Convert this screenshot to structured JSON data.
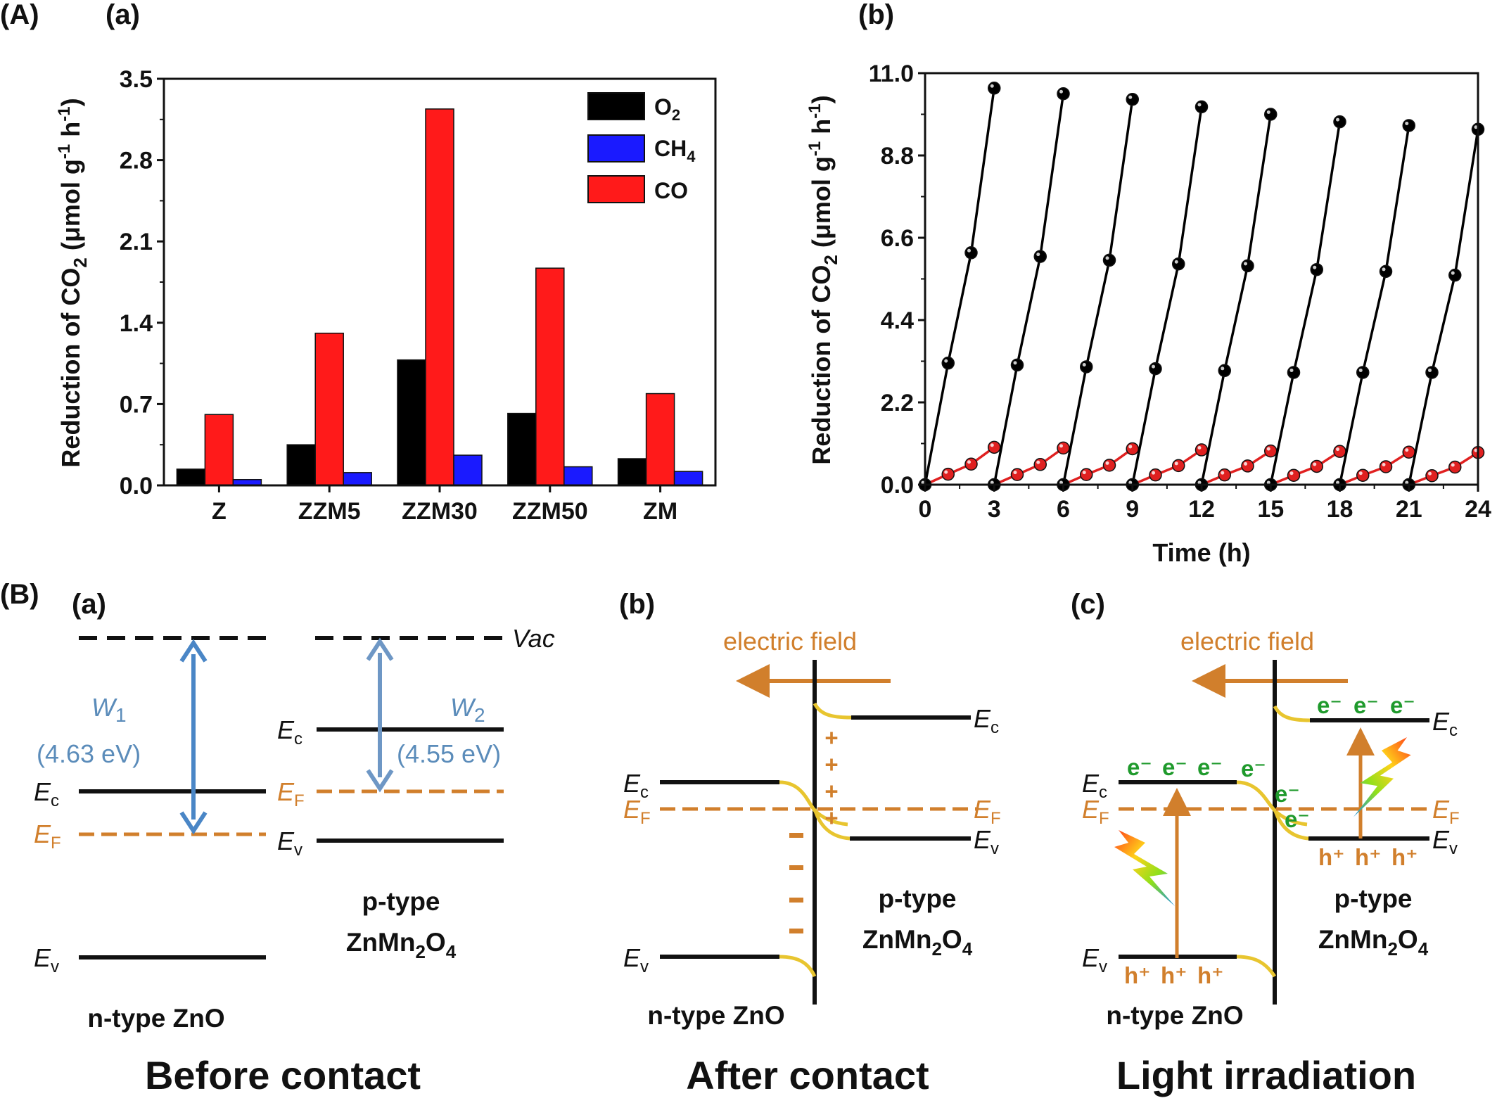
{
  "panel_labels": {
    "A": "(A)",
    "B": "(B)",
    "Aa": "(a)",
    "Ab": "(b)",
    "Ba": "(a)",
    "Bb": "(b)",
    "Bc": "(c)"
  },
  "chart_data": [
    {
      "type": "bar",
      "ylabel": "Reduction of CO2 (μmol g-1 h-1)",
      "xlabel": "",
      "categories": [
        "Z",
        "ZZM5",
        "ZZM30",
        "ZZM50",
        "ZM"
      ],
      "ylim": [
        0,
        3.5
      ],
      "yticks": [
        "0.0",
        "0.7",
        "1.4",
        "2.1",
        "2.8",
        "3.5"
      ],
      "legend_position": "top-right",
      "series": [
        {
          "name": "O2",
          "color": "#000000",
          "values": [
            0.14,
            0.35,
            1.08,
            0.62,
            0.23
          ]
        },
        {
          "name": "CO",
          "color": "#ff1a1a",
          "values": [
            0.61,
            1.31,
            3.24,
            1.87,
            0.79
          ]
        },
        {
          "name": "CH4",
          "color": "#1a1aff",
          "values": [
            0.05,
            0.11,
            0.26,
            0.16,
            0.12
          ]
        }
      ]
    },
    {
      "type": "line",
      "ylabel": "Reduction of CO2 (μmol g-1 h-1)",
      "xlabel": "Time (h)",
      "xlim": [
        0,
        24
      ],
      "ylim": [
        0,
        11.0
      ],
      "xticks": [
        "0",
        "3",
        "6",
        "9",
        "12",
        "15",
        "18",
        "21",
        "24"
      ],
      "yticks": [
        "0.0",
        "2.2",
        "4.4",
        "6.6",
        "8.8",
        "11.0"
      ],
      "cycle_length_h": 3,
      "series": [
        {
          "color": "#000000",
          "cycles": [
            [
              [
                0,
                0
              ],
              [
                1,
                3.25
              ],
              [
                2,
                6.2
              ],
              [
                3,
                10.6
              ]
            ],
            [
              [
                3,
                0
              ],
              [
                4,
                3.2
              ],
              [
                5,
                6.1
              ],
              [
                6,
                10.45
              ]
            ],
            [
              [
                6,
                0
              ],
              [
                7,
                3.15
              ],
              [
                8,
                6.0
              ],
              [
                9,
                10.3
              ]
            ],
            [
              [
                9,
                0
              ],
              [
                10,
                3.1
              ],
              [
                11,
                5.9
              ],
              [
                12,
                10.1
              ]
            ],
            [
              [
                12,
                0
              ],
              [
                13,
                3.05
              ],
              [
                14,
                5.85
              ],
              [
                15,
                9.9
              ]
            ],
            [
              [
                15,
                0
              ],
              [
                16,
                3.0
              ],
              [
                17,
                5.75
              ],
              [
                18,
                9.7
              ]
            ],
            [
              [
                18,
                0
              ],
              [
                19,
                3.0
              ],
              [
                20,
                5.7
              ],
              [
                21,
                9.6
              ]
            ],
            [
              [
                21,
                0
              ],
              [
                22,
                3.0
              ],
              [
                23,
                5.6
              ],
              [
                24,
                9.5
              ]
            ]
          ]
        },
        {
          "color": "#e02020",
          "cycles": [
            [
              [
                0,
                0
              ],
              [
                1,
                0.28
              ],
              [
                2,
                0.55
              ],
              [
                3,
                1.0
              ]
            ],
            [
              [
                3,
                0
              ],
              [
                4,
                0.27
              ],
              [
                5,
                0.54
              ],
              [
                6,
                0.98
              ]
            ],
            [
              [
                6,
                0
              ],
              [
                7,
                0.27
              ],
              [
                8,
                0.52
              ],
              [
                9,
                0.96
              ]
            ],
            [
              [
                9,
                0
              ],
              [
                10,
                0.26
              ],
              [
                11,
                0.51
              ],
              [
                12,
                0.93
              ]
            ],
            [
              [
                12,
                0
              ],
              [
                13,
                0.26
              ],
              [
                14,
                0.5
              ],
              [
                15,
                0.9
              ]
            ],
            [
              [
                15,
                0
              ],
              [
                16,
                0.25
              ],
              [
                17,
                0.49
              ],
              [
                18,
                0.89
              ]
            ],
            [
              [
                18,
                0
              ],
              [
                19,
                0.25
              ],
              [
                20,
                0.48
              ],
              [
                21,
                0.87
              ]
            ],
            [
              [
                21,
                0
              ],
              [
                22,
                0.24
              ],
              [
                23,
                0.47
              ],
              [
                24,
                0.86
              ]
            ]
          ]
        }
      ]
    }
  ],
  "diagram": {
    "a": {
      "vac": "Vac",
      "w1": "W",
      "w1_sub": "1",
      "w1_val": "(4.63 eV)",
      "w2": "W",
      "w2_sub": "2",
      "w2_val": "(4.55 eV)",
      "ec": "E",
      "ec_sub": "c",
      "ef": "E",
      "ef_sub": "F",
      "ev": "E",
      "ev_sub": "v",
      "n_label": "n-type ZnO",
      "p_label_1": "p-type",
      "p_label_2": "ZnMn",
      "p_label_2_sub": "2",
      "p_label_2b": "O",
      "p_label_2b_sub": "4",
      "caption": "Before contact"
    },
    "b": {
      "field": "electric field",
      "plus": "+",
      "minus": "−",
      "n_label": "n-type ZnO",
      "p_label_1": "p-type",
      "caption": "After contact"
    },
    "c": {
      "field": "electric field",
      "electron": "e⁻",
      "hole": "h⁺",
      "n_label": "n-type ZnO",
      "p_label_1": "p-type",
      "caption": "Light irradiation"
    }
  }
}
